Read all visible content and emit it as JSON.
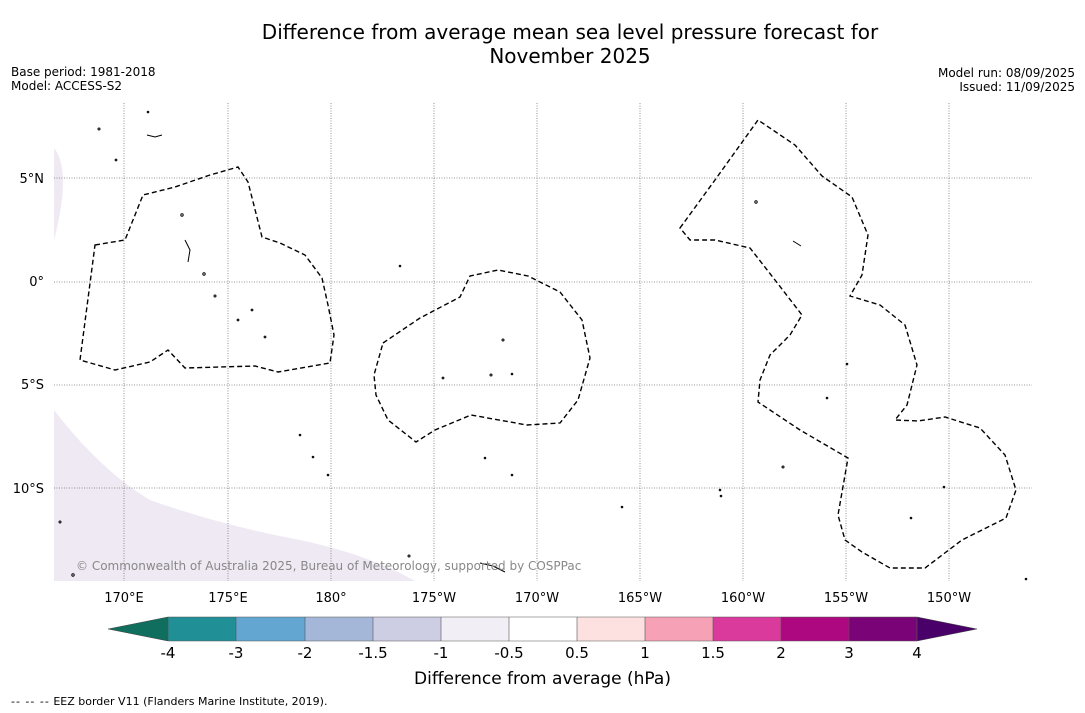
{
  "title_line1": "Difference from average mean sea level pressure forecast for",
  "title_line2": "November 2025",
  "meta_left": {
    "base_period": "Base period: 1981-2018",
    "model": "Model: ACCESS-S2"
  },
  "meta_right": {
    "model_run": "Model run: 08/09/2025",
    "issued": "Issued: 11/09/2025"
  },
  "copyright": "© Commonwealth of Australia 2025, Bureau of Meteorology, supported by COSPPac",
  "map": {
    "lat_labels": [
      "5°N",
      "0°",
      "5°S",
      "10°S"
    ],
    "lon_labels": [
      "170°E",
      "175°E",
      "180°",
      "175°W",
      "170°W",
      "165°W",
      "160°W",
      "155°W",
      "150°W"
    ],
    "shaded_class": "-1 to -0.5",
    "border_style": "dashed"
  },
  "colorbar": {
    "label": "Difference from average (hPa)",
    "ticks": [
      "-4",
      "-3",
      "-2",
      "-1.5",
      "-1",
      "-0.5",
      "0.5",
      "1",
      "1.5",
      "2",
      "3",
      "4"
    ],
    "colors": [
      "#0f6e5e",
      "#208f96",
      "#62a6d1",
      "#a4b7d9",
      "#cdcde4",
      "#f1eef5",
      "#ffffff",
      "#fde0e0",
      "#f7a1b6",
      "#d93a9b",
      "#ad0880",
      "#7a0477",
      "#4a0069"
    ]
  },
  "footer": {
    "dash_symbol": "--  --  --",
    "text": "EEZ border V11 (Flanders Marine Institute, 2019)."
  }
}
